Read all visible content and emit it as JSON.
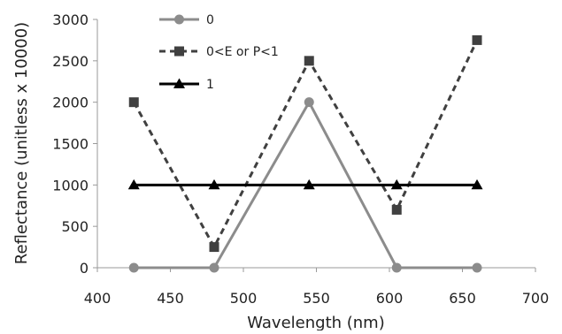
{
  "chart_data": {
    "type": "line",
    "title": "",
    "xlabel": "Wavelength (nm)",
    "ylabel": "Reflectance (unitless x 10000)",
    "xlim": [
      400,
      700
    ],
    "ylim": [
      0,
      3000
    ],
    "xticks": [
      400,
      450,
      500,
      550,
      600,
      650,
      700
    ],
    "yticks": [
      0,
      500,
      1000,
      1500,
      2000,
      2500,
      3000
    ],
    "grid": false,
    "legend_position": "top-left",
    "series": [
      {
        "name": "0",
        "marker": "circle",
        "line_style": "solid",
        "color": "#8c8c8c",
        "points": [
          [
            425,
            0
          ],
          [
            480,
            0
          ],
          [
            545,
            2000
          ],
          [
            605,
            0
          ],
          [
            660,
            0
          ]
        ]
      },
      {
        "name": "0<E or P<1",
        "marker": "square",
        "line_style": "dashed",
        "color": "#404040",
        "points": [
          [
            425,
            2000
          ],
          [
            480,
            250
          ],
          [
            545,
            2500
          ],
          [
            605,
            700
          ],
          [
            660,
            2750
          ]
        ]
      },
      {
        "name": "1",
        "marker": "triangle",
        "line_style": "solid",
        "color": "#000000",
        "points": [
          [
            425,
            1000
          ],
          [
            480,
            1000
          ],
          [
            545,
            1000
          ],
          [
            605,
            1000
          ],
          [
            660,
            1000
          ]
        ]
      }
    ]
  }
}
